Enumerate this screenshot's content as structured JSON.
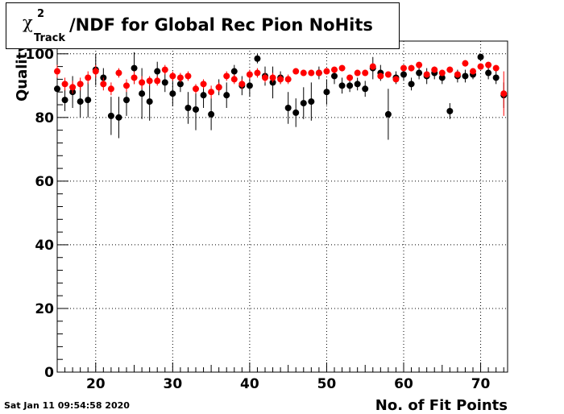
{
  "header": {
    "chi_symbol": "χ",
    "superscript": "2",
    "subscript": "Track",
    "title_text": "/NDF for Global Rec Pion NoHits"
  },
  "footer": {
    "timestamp": "Sat Jan 11 09:54:58 2020"
  },
  "chart_data": {
    "type": "scatter",
    "xlabel": "No. of Fit Points",
    "ylabel": "Quality",
    "xlim": [
      15,
      73.5
    ],
    "ylim": [
      0,
      104
    ],
    "x_ticks": [
      20,
      30,
      40,
      50,
      60,
      70
    ],
    "y_ticks": [
      0,
      20,
      40,
      60,
      80,
      100
    ],
    "grid": true,
    "series": [
      {
        "color": "#000000",
        "points": [
          {
            "x": 15,
            "y": 89,
            "err": 4
          },
          {
            "x": 16,
            "y": 85.5,
            "err": 3.5
          },
          {
            "x": 17,
            "y": 88,
            "err": 5
          },
          {
            "x": 18,
            "y": 85,
            "err": 5
          },
          {
            "x": 19,
            "y": 85.5,
            "err": 5.5
          },
          {
            "x": 20,
            "y": 95,
            "err": 5
          },
          {
            "x": 21,
            "y": 92.5,
            "err": 3
          },
          {
            "x": 22,
            "y": 80.5,
            "err": 6
          },
          {
            "x": 23,
            "y": 80,
            "err": 6.5
          },
          {
            "x": 24,
            "y": 85.5,
            "err": 5
          },
          {
            "x": 25,
            "y": 95.5,
            "err": 5
          },
          {
            "x": 26,
            "y": 87.5,
            "err": 8
          },
          {
            "x": 27,
            "y": 85,
            "err": 6
          },
          {
            "x": 28,
            "y": 94.5,
            "err": 3
          },
          {
            "x": 29,
            "y": 91,
            "err": 3
          },
          {
            "x": 30,
            "y": 87.5,
            "err": 4
          },
          {
            "x": 31,
            "y": 90.5,
            "err": 2.5
          },
          {
            "x": 32,
            "y": 83,
            "err": 5
          },
          {
            "x": 33,
            "y": 82.5,
            "err": 6.5
          },
          {
            "x": 34,
            "y": 87,
            "err": 4
          },
          {
            "x": 35,
            "y": 81,
            "err": 5
          },
          {
            "x": 36,
            "y": 89.5,
            "err": 2.5
          },
          {
            "x": 37,
            "y": 87,
            "err": 4
          },
          {
            "x": 38,
            "y": 94.5,
            "err": 2
          },
          {
            "x": 39,
            "y": 90,
            "err": 3
          },
          {
            "x": 40,
            "y": 90,
            "err": 3.5
          },
          {
            "x": 41,
            "y": 98.5,
            "err": 1.5
          },
          {
            "x": 42,
            "y": 93,
            "err": 3
          },
          {
            "x": 43,
            "y": 91,
            "err": 5
          },
          {
            "x": 44,
            "y": 92.5,
            "err": 2
          },
          {
            "x": 45,
            "y": 83,
            "err": 5
          },
          {
            "x": 46,
            "y": 81.5,
            "err": 4.5
          },
          {
            "x": 47,
            "y": 84.5,
            "err": 5
          },
          {
            "x": 48,
            "y": 85,
            "err": 6
          },
          {
            "x": 49,
            "y": 94,
            "err": 2
          },
          {
            "x": 50,
            "y": 88,
            "err": 4
          },
          {
            "x": 51,
            "y": 93,
            "err": 2.5
          },
          {
            "x": 52,
            "y": 90,
            "err": 2.5
          },
          {
            "x": 53,
            "y": 90,
            "err": 2
          },
          {
            "x": 54,
            "y": 90.5,
            "err": 2
          },
          {
            "x": 55,
            "y": 89,
            "err": 2.5
          },
          {
            "x": 56,
            "y": 95.5,
            "err": 3.5
          },
          {
            "x": 57,
            "y": 94,
            "err": 2.5
          },
          {
            "x": 58,
            "y": 81,
            "err": 8
          },
          {
            "x": 59,
            "y": 92.5,
            "err": 2
          },
          {
            "x": 60,
            "y": 93.5,
            "err": 2
          },
          {
            "x": 61,
            "y": 90.5,
            "err": 2
          },
          {
            "x": 62,
            "y": 94,
            "err": 2
          },
          {
            "x": 63,
            "y": 93,
            "err": 2.5
          },
          {
            "x": 64,
            "y": 94,
            "err": 2
          },
          {
            "x": 65,
            "y": 92.5,
            "err": 2
          },
          {
            "x": 66,
            "y": 82,
            "err": 2.5
          },
          {
            "x": 67,
            "y": 93,
            "err": 2
          },
          {
            "x": 68,
            "y": 93,
            "err": 2
          },
          {
            "x": 69,
            "y": 93.5,
            "err": 1.5
          },
          {
            "x": 70,
            "y": 99,
            "err": 1
          },
          {
            "x": 71,
            "y": 94,
            "err": 2
          },
          {
            "x": 72,
            "y": 92.5,
            "err": 2
          },
          {
            "x": 73,
            "y": 87,
            "err": 4
          }
        ]
      },
      {
        "color": "#ff0000",
        "points": [
          {
            "x": 15,
            "y": 94.5,
            "err": 2
          },
          {
            "x": 16,
            "y": 90.5,
            "err": 2
          },
          {
            "x": 17,
            "y": 89.5,
            "err": 2
          },
          {
            "x": 18,
            "y": 90.5,
            "err": 2
          },
          {
            "x": 19,
            "y": 92.5,
            "err": 2
          },
          {
            "x": 20,
            "y": 94.5,
            "err": 2
          },
          {
            "x": 21,
            "y": 90.5,
            "err": 2
          },
          {
            "x": 22,
            "y": 89,
            "err": 2
          },
          {
            "x": 23,
            "y": 94,
            "err": 1.5
          },
          {
            "x": 24,
            "y": 90,
            "err": 2
          },
          {
            "x": 25,
            "y": 92.5,
            "err": 2
          },
          {
            "x": 26,
            "y": 91,
            "err": 2
          },
          {
            "x": 27,
            "y": 91.5,
            "err": 1.5
          },
          {
            "x": 28,
            "y": 91.5,
            "err": 1.5
          },
          {
            "x": 29,
            "y": 95,
            "err": 1.5
          },
          {
            "x": 30,
            "y": 93,
            "err": 1.5
          },
          {
            "x": 31,
            "y": 92.5,
            "err": 1.5
          },
          {
            "x": 32,
            "y": 93,
            "err": 1.5
          },
          {
            "x": 33,
            "y": 89,
            "err": 1.5
          },
          {
            "x": 34,
            "y": 90.5,
            "err": 1.5
          },
          {
            "x": 35,
            "y": 88,
            "err": 2
          },
          {
            "x": 36,
            "y": 89.5,
            "err": 1.5
          },
          {
            "x": 37,
            "y": 93,
            "err": 1.5
          },
          {
            "x": 38,
            "y": 92,
            "err": 1.5
          },
          {
            "x": 39,
            "y": 90.5,
            "err": 1.5
          },
          {
            "x": 40,
            "y": 93.5,
            "err": 1.5
          },
          {
            "x": 41,
            "y": 94,
            "err": 1.5
          },
          {
            "x": 42,
            "y": 92.5,
            "err": 1.5
          },
          {
            "x": 43,
            "y": 92.5,
            "err": 1.5
          },
          {
            "x": 44,
            "y": 92,
            "err": 1.5
          },
          {
            "x": 45,
            "y": 92,
            "err": 1.5
          },
          {
            "x": 46,
            "y": 94.5,
            "err": 1
          },
          {
            "x": 47,
            "y": 94,
            "err": 1
          },
          {
            "x": 48,
            "y": 94,
            "err": 1
          },
          {
            "x": 49,
            "y": 94,
            "err": 1
          },
          {
            "x": 50,
            "y": 94.5,
            "err": 1
          },
          {
            "x": 51,
            "y": 95,
            "err": 1
          },
          {
            "x": 52,
            "y": 95.5,
            "err": 1
          },
          {
            "x": 53,
            "y": 92.5,
            "err": 1
          },
          {
            "x": 54,
            "y": 94,
            "err": 1
          },
          {
            "x": 55,
            "y": 94,
            "err": 1
          },
          {
            "x": 56,
            "y": 96,
            "err": 1
          },
          {
            "x": 57,
            "y": 93,
            "err": 1
          },
          {
            "x": 58,
            "y": 93.5,
            "err": 1
          },
          {
            "x": 59,
            "y": 92,
            "err": 1
          },
          {
            "x": 60,
            "y": 95.5,
            "err": 1
          },
          {
            "x": 61,
            "y": 95.5,
            "err": 1
          },
          {
            "x": 62,
            "y": 96.5,
            "err": 1
          },
          {
            "x": 63,
            "y": 93.5,
            "err": 1
          },
          {
            "x": 64,
            "y": 95,
            "err": 1
          },
          {
            "x": 65,
            "y": 94,
            "err": 1
          },
          {
            "x": 66,
            "y": 95,
            "err": 1
          },
          {
            "x": 67,
            "y": 93.5,
            "err": 1
          },
          {
            "x": 68,
            "y": 97,
            "err": 1
          },
          {
            "x": 69,
            "y": 94.5,
            "err": 1
          },
          {
            "x": 70,
            "y": 96,
            "err": 1
          },
          {
            "x": 71,
            "y": 96.5,
            "err": 1
          },
          {
            "x": 72,
            "y": 95.5,
            "err": 1
          },
          {
            "x": 73,
            "y": 87.5,
            "err": 7
          }
        ]
      }
    ]
  }
}
